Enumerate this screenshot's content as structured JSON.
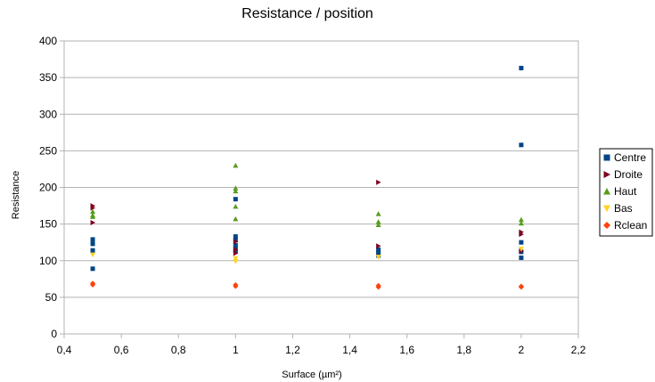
{
  "chart_data": {
    "type": "scatter",
    "title": "Resistance / position",
    "xlabel": "Surface (µm²)",
    "ylabel": "Resistance",
    "xlim": [
      0.4,
      2.2
    ],
    "ylim": [
      0,
      400
    ],
    "x_ticks": [
      0.4,
      0.6,
      0.8,
      1,
      1.2,
      1.4,
      1.6,
      1.8,
      2,
      2.2
    ],
    "x_tick_labels": [
      "0,4",
      "0,6",
      "0,8",
      "1",
      "1,2",
      "1,4",
      "1,6",
      "1,8",
      "2",
      "2,2"
    ],
    "y_ticks": [
      0,
      50,
      100,
      150,
      200,
      250,
      300,
      350,
      400
    ],
    "y_tick_labels": [
      "0",
      "50",
      "100",
      "150",
      "200",
      "250",
      "300",
      "350",
      "400"
    ],
    "grid": true,
    "legend_position": "right",
    "series": [
      {
        "name": "Centre",
        "color": "#004586",
        "marker": "square",
        "points": [
          [
            0.5,
            129
          ],
          [
            0.5,
            123
          ],
          [
            0.5,
            114
          ],
          [
            0.5,
            89
          ],
          [
            1,
            184
          ],
          [
            1,
            133
          ],
          [
            1,
            128
          ],
          [
            1,
            121
          ],
          [
            1,
            117
          ],
          [
            1,
            113
          ],
          [
            1.5,
            115
          ],
          [
            1.5,
            111
          ],
          [
            1.5,
            107
          ],
          [
            2,
            363
          ],
          [
            2,
            258
          ],
          [
            2,
            125
          ],
          [
            2,
            112
          ],
          [
            2,
            104
          ]
        ]
      },
      {
        "name": "Droite",
        "color": "#7e0021",
        "marker": "triangle-right",
        "points": [
          [
            0.5,
            175
          ],
          [
            0.5,
            172
          ],
          [
            0.5,
            152
          ],
          [
            1,
            126
          ],
          [
            1,
            115
          ],
          [
            1,
            110
          ],
          [
            1.5,
            207
          ],
          [
            1.5,
            120
          ],
          [
            2,
            139
          ],
          [
            2,
            136
          ],
          [
            2,
            113
          ]
        ]
      },
      {
        "name": "Haut",
        "color": "#579d1c",
        "marker": "triangle-up",
        "points": [
          [
            0.5,
            167
          ],
          [
            0.5,
            162
          ],
          [
            0.5,
            160
          ],
          [
            1,
            230
          ],
          [
            1,
            199
          ],
          [
            1,
            195
          ],
          [
            1,
            174
          ],
          [
            1,
            157
          ],
          [
            1.5,
            164
          ],
          [
            1.5,
            153
          ],
          [
            1.5,
            149
          ],
          [
            2,
            156
          ],
          [
            2,
            151
          ]
        ]
      },
      {
        "name": "Bas",
        "color": "#ffd320",
        "marker": "triangle-down",
        "points": [
          [
            0.5,
            108
          ],
          [
            1,
            103
          ],
          [
            1,
            99
          ],
          [
            1.5,
            105
          ],
          [
            2,
            116
          ]
        ]
      },
      {
        "name": "Rclean",
        "color": "#ff420e",
        "marker": "diamond",
        "points": [
          [
            0.5,
            69
          ],
          [
            0.5,
            67
          ],
          [
            1,
            67
          ],
          [
            1,
            65
          ],
          [
            1.5,
            66
          ],
          [
            1.5,
            64
          ],
          [
            2,
            65
          ],
          [
            2,
            64
          ]
        ]
      }
    ]
  }
}
